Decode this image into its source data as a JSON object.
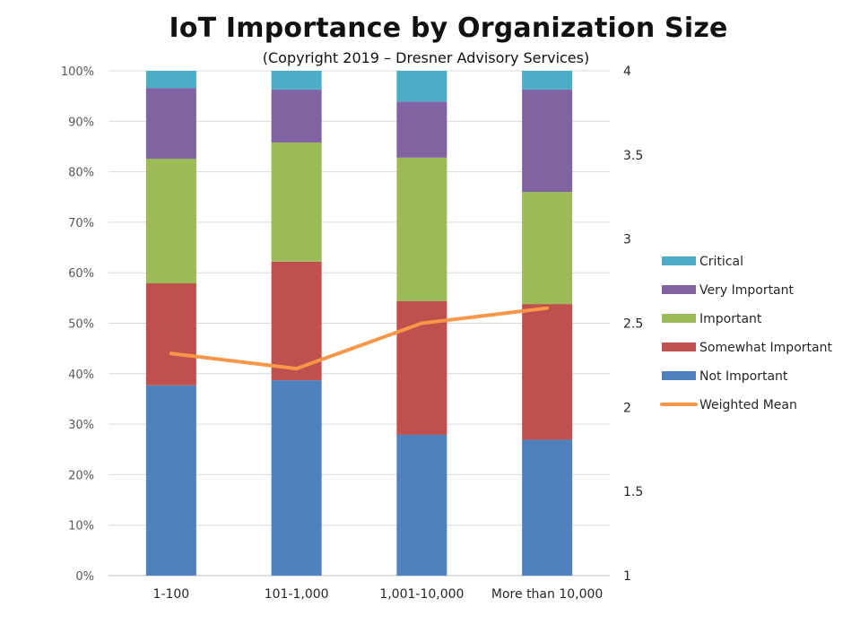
{
  "chart_data": {
    "type": "bar",
    "stacked": true,
    "percent_stacked": true,
    "title": "IoT Importance by Organization Size",
    "subtitle": "(Copyright 2019 – Dresner Advisory Services)",
    "xlabel": "",
    "ylabel": "",
    "categories": [
      "1-100",
      "101-1,000",
      "1,001-10,000",
      "More than 10,000"
    ],
    "ylim": [
      0,
      100
    ],
    "y_ticks": [
      "0%",
      "10%",
      "20%",
      "30%",
      "40%",
      "50%",
      "60%",
      "70%",
      "80%",
      "90%",
      "100%"
    ],
    "y2lim": [
      1,
      4
    ],
    "y2_ticks": [
      "1",
      "1.5",
      "2",
      "2.5",
      "3",
      "3.5",
      "4"
    ],
    "grid": true,
    "legend_position": "right",
    "series": [
      {
        "name": "Not Important",
        "color": "#4F81BD",
        "values": [
          37.7,
          38.7,
          27.9,
          26.9
        ]
      },
      {
        "name": "Somewhat Important",
        "color": "#C0504D",
        "values": [
          20.2,
          23.5,
          26.5,
          26.9
        ]
      },
      {
        "name": "Important",
        "color": "#9BBB59",
        "values": [
          24.7,
          23.6,
          28.4,
          22.2
        ]
      },
      {
        "name": "Very Important",
        "color": "#8064A2",
        "values": [
          14.0,
          10.5,
          11.1,
          20.3
        ]
      },
      {
        "name": "Critical",
        "color": "#4BACC6",
        "values": [
          3.4,
          3.7,
          6.1,
          3.7
        ]
      }
    ],
    "line_series": {
      "name": "Weighted Mean",
      "color": "#F79646",
      "axis": "secondary",
      "values": [
        2.32,
        2.23,
        2.5,
        2.59
      ]
    },
    "legend_order": [
      "Critical",
      "Very Important",
      "Important",
      "Somewhat Important",
      "Not Important",
      "Weighted Mean"
    ]
  }
}
